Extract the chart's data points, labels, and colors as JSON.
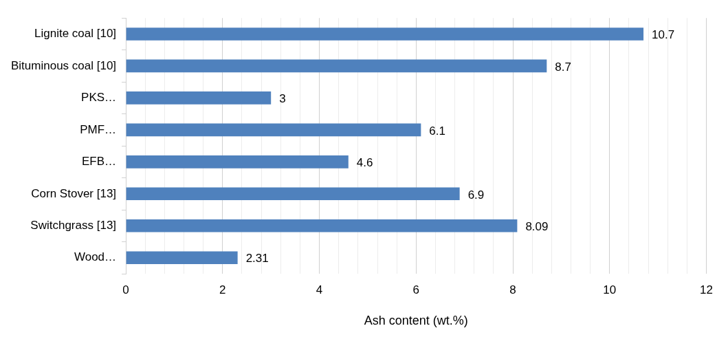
{
  "chart_data": {
    "type": "bar",
    "orientation": "horizontal",
    "xlabel": "Ash content (wt.%)",
    "categories": [
      "Lignite coal [10]",
      "Bituminous coal [10]",
      "PKS…",
      "PMF…",
      "EFB…",
      "Corn Stover [13]",
      "Switchgrass [13]",
      "Wood…"
    ],
    "values": [
      10.7,
      8.7,
      3,
      6.1,
      4.6,
      6.9,
      8.09,
      2.31
    ],
    "color": "#4f81bd",
    "data_labels": true,
    "grid": "x",
    "legend": false,
    "xlim": [
      0,
      12
    ],
    "xticks": [
      0,
      {
        "value": 0.4,
        "label": null
      },
      {
        "value": 0.8,
        "label": null
      },
      {
        "value": 1.2,
        "label": null
      },
      {
        "value": 1.6,
        "label": null
      },
      2,
      {
        "value": 2.4,
        "label": null
      },
      {
        "value": 2.8,
        "label": null
      },
      {
        "value": 3.2,
        "label": null
      },
      {
        "value": 3.6,
        "label": null
      },
      4,
      {
        "value": 4.4,
        "label": null
      },
      {
        "value": 4.8,
        "label": null
      },
      {
        "value": 5.2,
        "label": null
      },
      {
        "value": 5.6,
        "label": null
      },
      6,
      {
        "value": 6.4,
        "label": null
      },
      {
        "value": 6.8,
        "label": null
      },
      {
        "value": 7.2,
        "label": null
      },
      {
        "value": 7.6,
        "label": null
      },
      8,
      {
        "value": 8.4,
        "label": null
      },
      {
        "value": 8.8,
        "label": null
      },
      {
        "value": 9.2,
        "label": null
      },
      {
        "value": 9.6,
        "label": null
      },
      10,
      {
        "value": 10.4,
        "label": null
      },
      {
        "value": 10.8,
        "label": null
      },
      {
        "value": 11.2,
        "label": null
      },
      {
        "value": 11.6,
        "label": null
      },
      12
    ]
  }
}
